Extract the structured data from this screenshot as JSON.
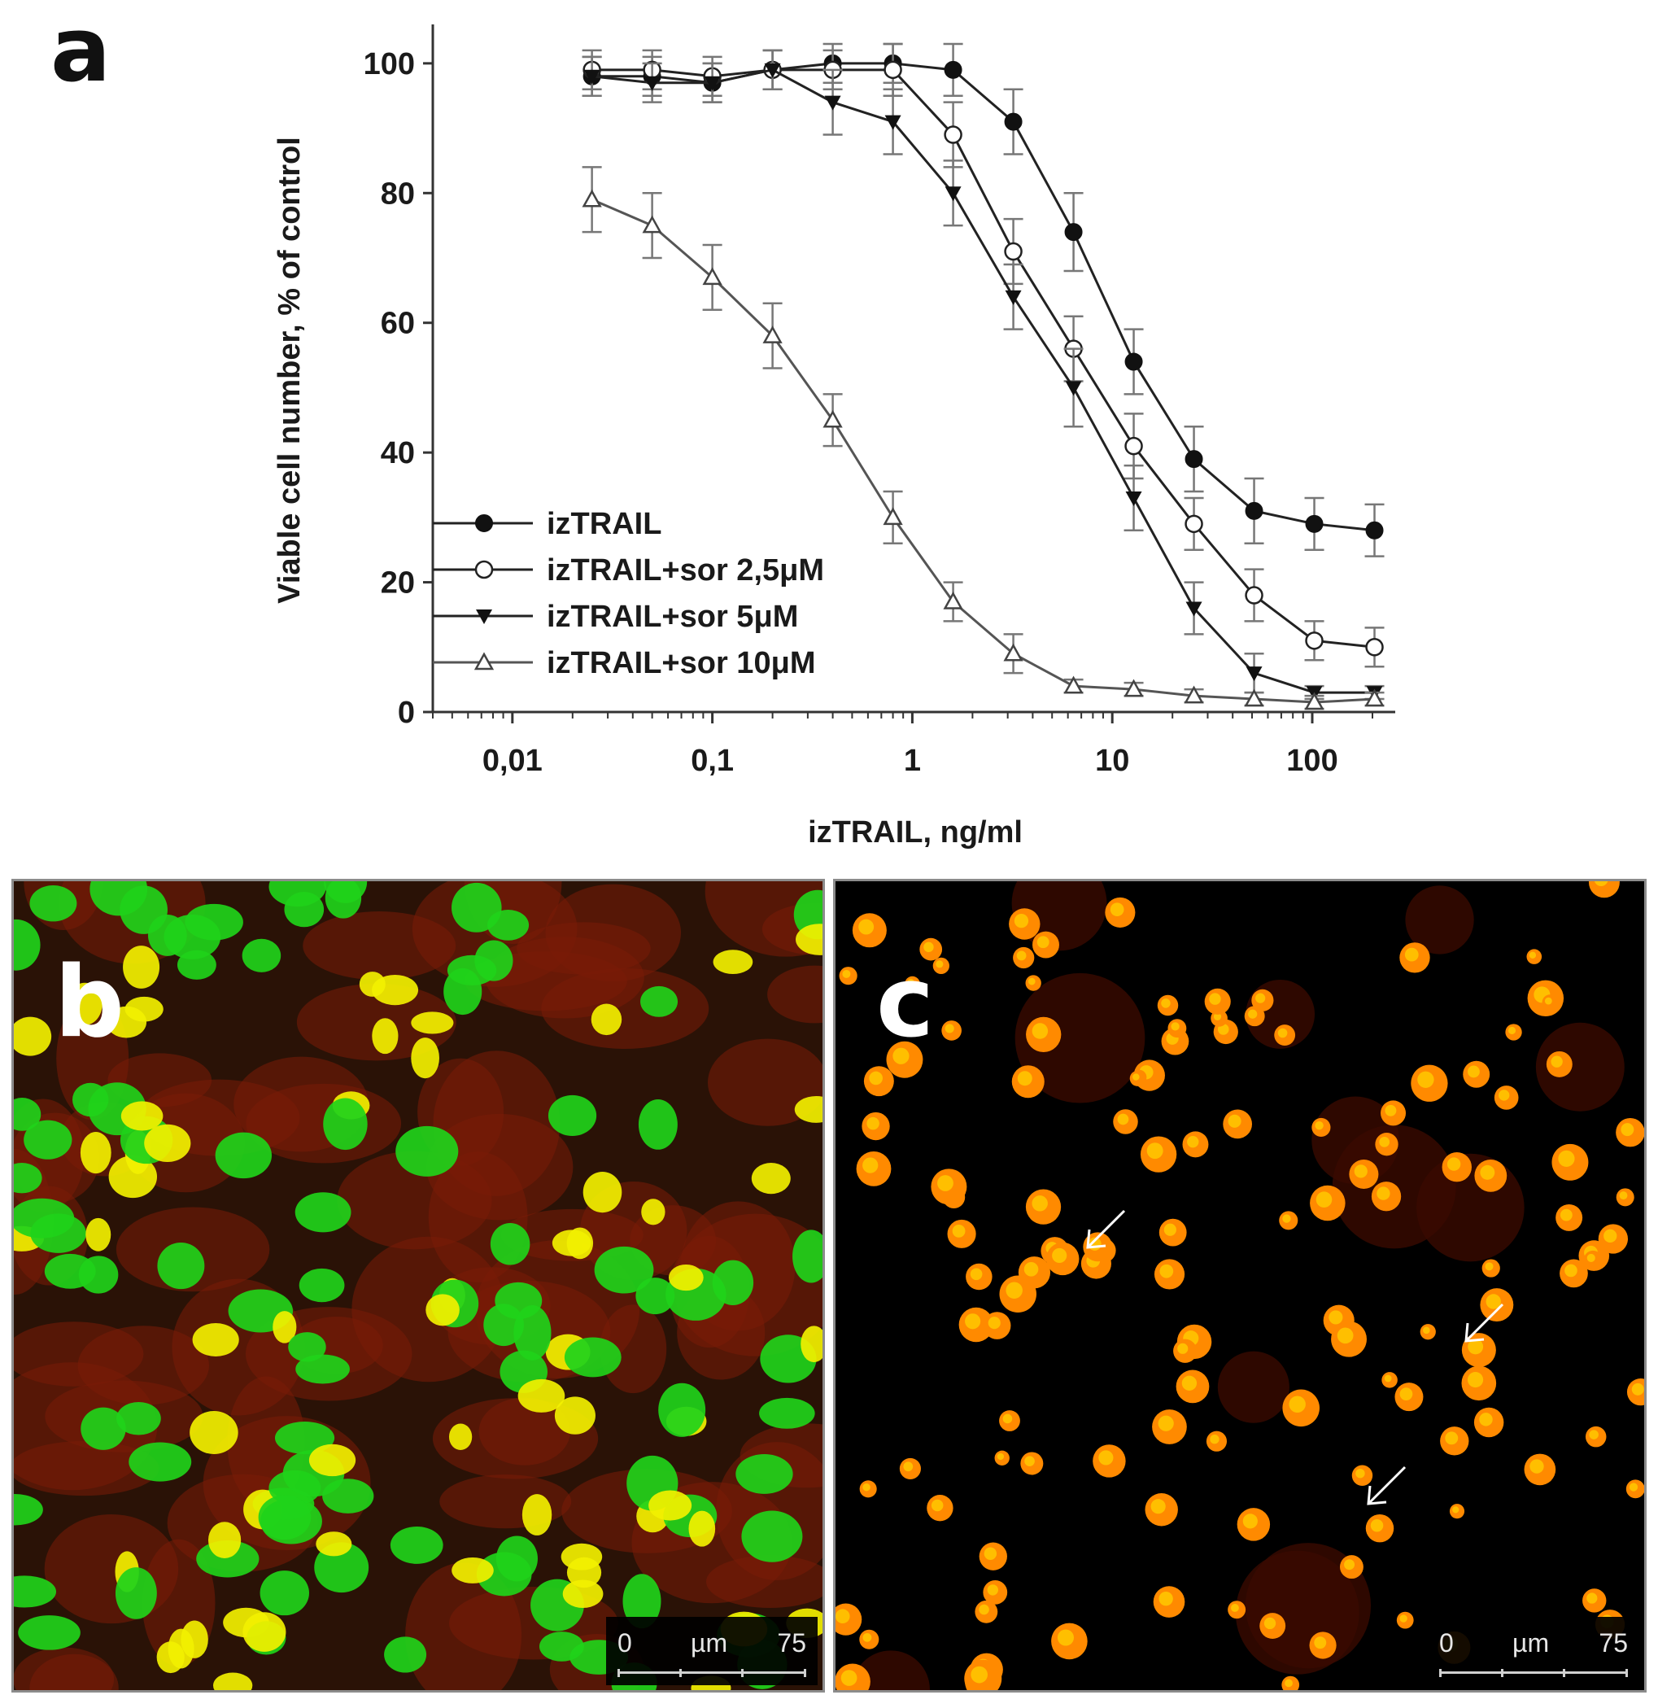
{
  "figure": {
    "panel_a_label": "a",
    "panel_b_label": "b",
    "panel_c_label": "c"
  },
  "chart_data": {
    "type": "line",
    "xlabel": "izTRAIL, ng/ml",
    "ylabel": "Viable cell number, % of control",
    "x_scale": "log",
    "xlim": [
      0.004,
      260
    ],
    "ylim": [
      0,
      105
    ],
    "x_ticks": [
      0.01,
      0.1,
      1,
      10,
      100
    ],
    "x_tick_labels": [
      "0,01",
      "0,1",
      "1",
      "10",
      "100"
    ],
    "y_ticks": [
      0,
      20,
      40,
      60,
      80,
      100
    ],
    "y_tick_labels": [
      "0",
      "20",
      "40",
      "60",
      "80",
      "100"
    ],
    "legend_position": "bottom-left",
    "grid": false,
    "x": [
      0.025,
      0.05,
      0.1,
      0.2,
      0.4,
      0.8,
      1.6,
      3.2,
      6.4,
      12.8,
      25.6,
      51.2,
      102.4,
      204.8
    ],
    "series": [
      {
        "name": "izTRAIL",
        "marker": "filled-circle",
        "values": [
          98,
          98,
          97,
          99,
          100,
          100,
          99,
          91,
          74,
          54,
          39,
          31,
          29,
          28
        ],
        "errors": [
          3,
          3,
          3,
          3,
          3,
          3,
          4,
          5,
          6,
          5,
          5,
          5,
          4,
          4
        ]
      },
      {
        "name": "izTRAIL+sor 2,5μM",
        "marker": "open-circle",
        "values": [
          99,
          99,
          98,
          99,
          99,
          99,
          89,
          71,
          56,
          41,
          29,
          18,
          11,
          10
        ],
        "errors": [
          3,
          3,
          3,
          3,
          3,
          4,
          5,
          5,
          5,
          5,
          4,
          4,
          3,
          3
        ]
      },
      {
        "name": "izTRAIL+sor 5μM",
        "marker": "filled-triangle-down",
        "values": [
          98,
          97,
          97,
          99,
          94,
          91,
          80,
          64,
          50,
          33,
          16,
          6,
          3,
          3
        ],
        "errors": [
          3,
          3,
          3,
          3,
          5,
          5,
          5,
          5,
          6,
          5,
          4,
          3,
          1,
          1
        ]
      },
      {
        "name": "izTRAIL+sor 10μM",
        "marker": "open-triangle-up",
        "values": [
          79,
          75,
          67,
          58,
          45,
          30,
          17,
          9,
          4,
          3.5,
          2.5,
          2,
          1.5,
          2
        ],
        "errors": [
          5,
          5,
          5,
          5,
          4,
          4,
          3,
          3,
          1,
          1,
          1,
          1,
          1,
          1
        ]
      }
    ]
  },
  "scalebars": {
    "b": {
      "start": "0",
      "unit": "µm",
      "end": "75"
    },
    "c": {
      "start": "0",
      "unit": "µm",
      "end": "75"
    }
  },
  "micrographs": {
    "b_colors": {
      "background": "#2a1206",
      "cytoplasm": "#7a1c08",
      "live_nucleus": "#1fd21a",
      "apoptotic_nucleus": "#f2f000"
    },
    "c_colors": {
      "background": "#000000",
      "dead_cell": "#ff8a00",
      "dead_cell_core": "#ffcc00",
      "cell_halo": "#3a0a00",
      "arrow": "#ffffff"
    }
  }
}
